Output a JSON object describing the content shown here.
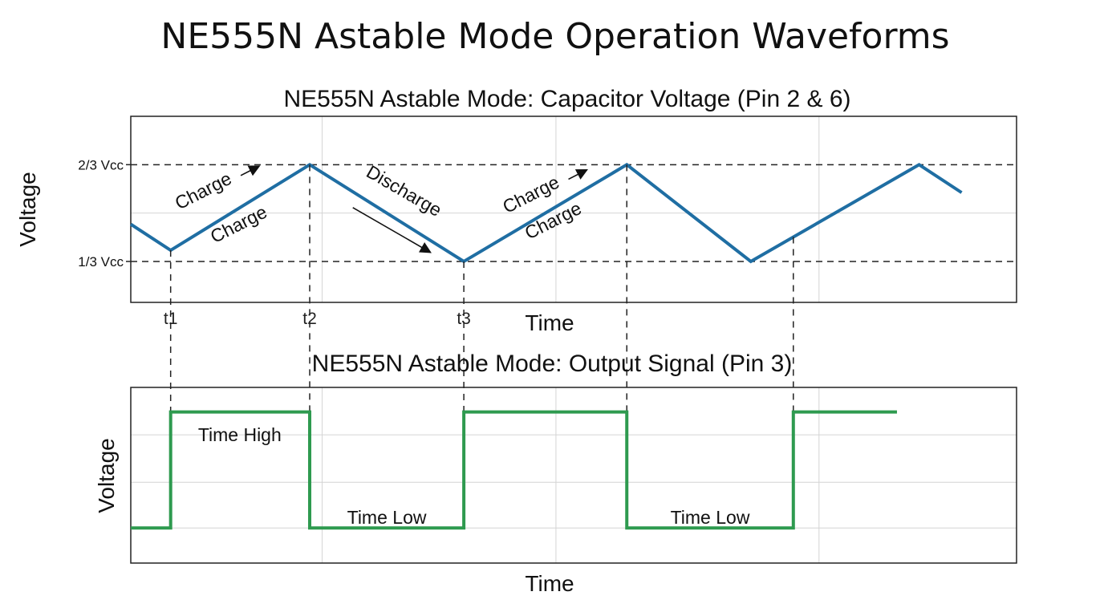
{
  "figure": {
    "title": "NE555N Astable Mode Operation Waveforms"
  },
  "colors": {
    "capacitor_line": "#1f6ea3",
    "output_line": "#2e9a4f",
    "grid": "#d4d4d4",
    "frame": "#222222"
  },
  "chart_data": [
    {
      "type": "line",
      "title": "NE555N Astable Mode: Capacitor Voltage (Pin 2 & 6)",
      "xlabel": "Time",
      "ylabel": "Voltage",
      "xlim": [
        0,
        10
      ],
      "ylim": [
        0,
        1
      ],
      "grid": true,
      "y_ticks": [
        {
          "value": 0.74,
          "label": "2/3 Vcc"
        },
        {
          "value": 0.22,
          "label": "1/3 Vcc"
        }
      ],
      "time_markers": [
        {
          "x": 0.45,
          "label": "t1"
        },
        {
          "x": 2.02,
          "label": "t2"
        },
        {
          "x": 3.76,
          "label": "t3"
        },
        {
          "x": 5.6,
          "label": ""
        },
        {
          "x": 7.48,
          "label": ""
        }
      ],
      "series": [
        {
          "x": [
            0,
            0.45,
            2.02,
            3.76,
            5.6,
            7.0,
            8.9,
            9.38
          ],
          "y": [
            0.42,
            0.28,
            0.74,
            0.22,
            0.74,
            0.22,
            0.74,
            0.59
          ]
        }
      ],
      "annotations": [
        {
          "text": "Charge",
          "x": 0.85,
          "y": 0.57,
          "angle": -27,
          "arrow": true
        },
        {
          "text": "Charge",
          "x": 1.25,
          "y": 0.39,
          "angle": -27,
          "arrow": false
        },
        {
          "text": "Discharge",
          "x": 3.05,
          "y": 0.57,
          "angle": 30,
          "arrow": true
        },
        {
          "text": "Charge",
          "x": 4.55,
          "y": 0.55,
          "angle": -27,
          "arrow": true
        },
        {
          "text": "Charge",
          "x": 4.8,
          "y": 0.41,
          "angle": -27,
          "arrow": false
        }
      ]
    },
    {
      "type": "line",
      "title": "NE555N Astable Mode: Output Signal (Pin 3)",
      "xlabel": "Time",
      "ylabel": "Voltage",
      "xlim": [
        0,
        10
      ],
      "ylim": [
        0,
        1
      ],
      "grid": true,
      "series": [
        {
          "x": [
            0,
            0.45,
            0.45,
            2.02,
            2.02,
            3.76,
            3.76,
            5.6,
            5.6,
            7.48,
            7.48,
            8.65
          ],
          "y": [
            0.2,
            0.2,
            0.86,
            0.86,
            0.2,
            0.2,
            0.86,
            0.86,
            0.2,
            0.2,
            0.86,
            0.86
          ]
        }
      ],
      "annotations": [
        {
          "text": "Time High",
          "x": 1.23,
          "y": 0.73
        },
        {
          "text": "Time Low",
          "x": 2.89,
          "y": 0.26
        },
        {
          "text": "Time Low",
          "x": 6.54,
          "y": 0.26
        }
      ]
    }
  ]
}
